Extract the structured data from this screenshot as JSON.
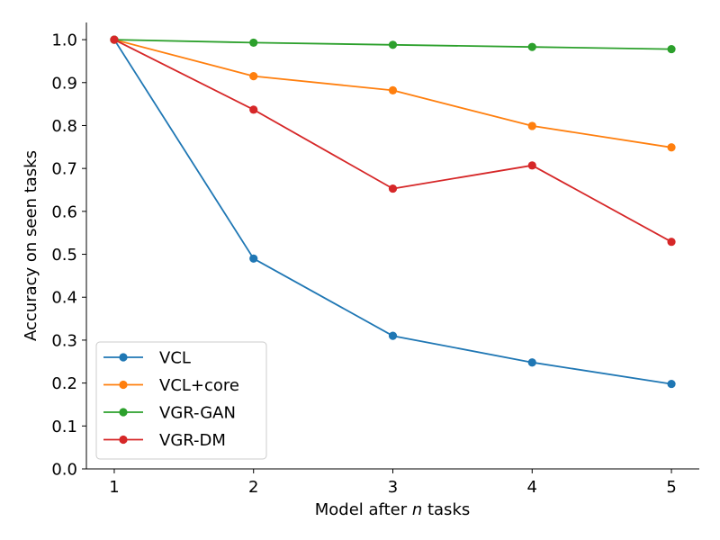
{
  "chart_data": {
    "type": "line",
    "title": "",
    "xlabel_prefix": "Model after ",
    "xlabel_var": "n",
    "xlabel_suffix": " tasks",
    "ylabel": "Accuracy on seen tasks",
    "x": [
      1,
      2,
      3,
      4,
      5
    ],
    "xlim": [
      0.8,
      5.2
    ],
    "ylim": [
      0.0,
      1.04
    ],
    "x_ticks": [
      1,
      2,
      3,
      4,
      5
    ],
    "y_ticks": [
      0.0,
      0.1,
      0.2,
      0.3,
      0.4,
      0.5,
      0.6,
      0.7,
      0.8,
      0.9,
      1.0
    ],
    "y_tick_labels": [
      "0.0",
      "0.1",
      "0.2",
      "0.3",
      "0.4",
      "0.5",
      "0.6",
      "0.7",
      "0.8",
      "0.9",
      "1.0"
    ],
    "grid": false,
    "legend_position": "lower-left",
    "series": [
      {
        "name": "VCL",
        "color": "#1f77b4",
        "values": [
          1.0,
          0.49,
          0.31,
          0.248,
          0.198
        ]
      },
      {
        "name": "VCL+core",
        "color": "#ff7f0e",
        "values": [
          1.0,
          0.915,
          0.882,
          0.799,
          0.749
        ]
      },
      {
        "name": "VGR-GAN",
        "color": "#2ca02c",
        "values": [
          1.0,
          0.993,
          0.988,
          0.983,
          0.978
        ]
      },
      {
        "name": "VGR-DM",
        "color": "#d62728",
        "values": [
          1.0,
          0.837,
          0.653,
          0.707,
          0.529
        ]
      }
    ]
  }
}
